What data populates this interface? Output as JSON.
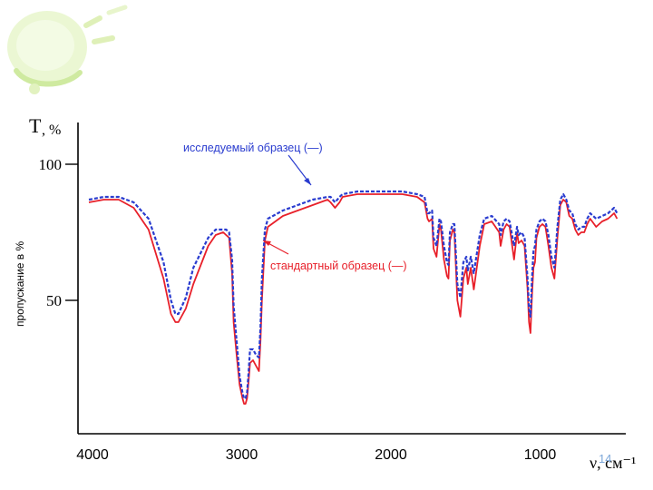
{
  "colors": {
    "standard": "#e8202a",
    "sample": "#2a3ccf",
    "annotation_sample": "#2a3ccf",
    "annotation_standard": "#e8202a",
    "axis": "#000000",
    "decor": "#d9efb0",
    "page_number": "#7da7d9"
  },
  "decor": {
    "icon": "bubble-swirl-icon"
  },
  "page_number": "14",
  "chart_data": {
    "type": "line",
    "ylabel_symbol": "T",
    "ylabel_unit": ", %",
    "ylabel_side": "пропускание в %",
    "xlabel": "ν, см⁻¹",
    "xlim": [
      4000,
      450
    ],
    "ylim": [
      0,
      100
    ],
    "yticks": [
      {
        "value": 100,
        "label": "100"
      },
      {
        "value": 50,
        "label": "50"
      }
    ],
    "xticks": [
      {
        "value": 4000,
        "label": "4000"
      },
      {
        "value": 3000,
        "label": "3000"
      },
      {
        "value": 2000,
        "label": "2000"
      },
      {
        "value": 1000,
        "label": "1000"
      }
    ],
    "annotations": [
      {
        "text": "исследуемый образец  (—)",
        "series": "sample"
      },
      {
        "text": "стандартный образец (—)",
        "series": "standard"
      }
    ],
    "series": [
      {
        "key": "standard",
        "x": [
          4000,
          3900,
          3800,
          3700,
          3600,
          3500,
          3450,
          3420,
          3400,
          3350,
          3300,
          3200,
          3150,
          3100,
          3080,
          3060,
          3040,
          3030,
          3010,
          2990,
          2970,
          2960,
          2950,
          2940,
          2930,
          2920,
          2900,
          2880,
          2860,
          2850,
          2840,
          2820,
          2800,
          2700,
          2600,
          2500,
          2400,
          2380,
          2350,
          2320,
          2300,
          2200,
          2100,
          2000,
          1950,
          1900,
          1800,
          1750,
          1730,
          1720,
          1700,
          1690,
          1670,
          1650,
          1640,
          1620,
          1600,
          1590,
          1580,
          1560,
          1550,
          1530,
          1510,
          1490,
          1470,
          1460,
          1440,
          1420,
          1400,
          1380,
          1350,
          1300,
          1250,
          1240,
          1220,
          1200,
          1180,
          1150,
          1130,
          1120,
          1100,
          1080,
          1060,
          1050,
          1040,
          1030,
          1020,
          1010,
          1000,
          980,
          960,
          940,
          920,
          900,
          880,
          860,
          840,
          820,
          800,
          780,
          760,
          740,
          720,
          700,
          680,
          660,
          640,
          600,
          560,
          520,
          480,
          460
        ],
        "y": [
          86,
          87,
          87,
          84,
          76,
          58,
          45,
          42,
          42,
          47,
          56,
          70,
          74,
          75,
          74,
          73,
          60,
          42,
          30,
          19,
          14,
          12,
          12,
          14,
          20,
          27,
          28,
          26,
          24,
          35,
          50,
          72,
          77,
          81,
          83,
          85,
          87,
          86,
          84,
          86,
          88,
          89,
          89,
          89,
          89,
          89,
          88,
          86,
          80,
          79,
          80,
          69,
          66,
          78,
          76,
          65,
          59,
          58,
          72,
          76,
          75,
          50,
          44,
          58,
          62,
          56,
          62,
          54,
          62,
          70,
          78,
          79,
          75,
          70,
          76,
          78,
          77,
          65,
          75,
          71,
          72,
          70,
          54,
          42,
          38,
          52,
          62,
          64,
          73,
          77,
          78,
          77,
          70,
          62,
          58,
          73,
          85,
          87,
          86,
          81,
          80,
          76,
          74,
          75,
          75,
          78,
          80,
          77,
          79,
          80,
          82,
          80
        ]
      },
      {
        "key": "sample",
        "x": [
          4000,
          3900,
          3800,
          3700,
          3600,
          3500,
          3450,
          3420,
          3400,
          3350,
          3300,
          3200,
          3150,
          3100,
          3080,
          3060,
          3040,
          3030,
          3010,
          2990,
          2970,
          2960,
          2950,
          2940,
          2930,
          2920,
          2900,
          2880,
          2860,
          2850,
          2840,
          2820,
          2800,
          2700,
          2600,
          2500,
          2400,
          2380,
          2350,
          2320,
          2300,
          2200,
          2100,
          2000,
          1950,
          1900,
          1800,
          1750,
          1730,
          1720,
          1700,
          1690,
          1670,
          1650,
          1640,
          1620,
          1600,
          1590,
          1580,
          1560,
          1550,
          1530,
          1510,
          1490,
          1470,
          1460,
          1440,
          1420,
          1400,
          1380,
          1350,
          1300,
          1250,
          1240,
          1220,
          1200,
          1180,
          1150,
          1130,
          1120,
          1100,
          1080,
          1060,
          1050,
          1040,
          1030,
          1020,
          1010,
          1000,
          980,
          960,
          940,
          920,
          900,
          880,
          860,
          840,
          820,
          800,
          780,
          760,
          740,
          720,
          700,
          680,
          660,
          640,
          600,
          560,
          520,
          480,
          460
        ],
        "y": [
          87,
          88,
          88,
          86,
          80,
          64,
          50,
          45,
          45,
          51,
          62,
          73,
          76,
          76,
          76,
          75,
          65,
          48,
          35,
          22,
          16,
          14,
          14,
          16,
          23,
          32,
          32,
          30,
          29,
          40,
          58,
          76,
          80,
          83,
          85,
          87,
          88,
          88,
          86,
          88,
          89,
          90,
          90,
          90,
          90,
          90,
          89,
          88,
          82,
          82,
          83,
          73,
          70,
          80,
          79,
          70,
          64,
          63,
          75,
          78,
          78,
          56,
          51,
          64,
          66,
          61,
          66,
          60,
          67,
          74,
          80,
          81,
          78,
          74,
          79,
          80,
          79,
          70,
          77,
          74,
          75,
          73,
          58,
          47,
          44,
          58,
          68,
          70,
          76,
          79,
          80,
          79,
          74,
          66,
          62,
          77,
          87,
          89,
          87,
          83,
          82,
          78,
          76,
          77,
          77,
          80,
          82,
          80,
          81,
          82,
          84,
          82
        ]
      }
    ]
  }
}
